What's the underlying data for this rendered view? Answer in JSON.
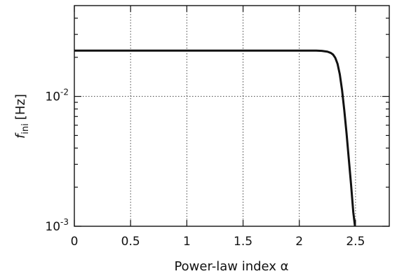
{
  "chart_data": {
    "type": "line",
    "title": "",
    "xlabel": "Power-law index α",
    "ylabel": "f_ini [Hz]",
    "ylabel_parts": {
      "symbol": "f",
      "subscript": "ini",
      "unit": "[Hz]"
    },
    "xlim": [
      0,
      2.8
    ],
    "ylim": [
      0.001,
      0.05
    ],
    "yscale": "log",
    "grid": true,
    "x_ticks": [
      0,
      0.5,
      1,
      1.5,
      2,
      2.5
    ],
    "x_tick_labels": [
      "0",
      "0.5",
      "1",
      "1.5",
      "2",
      "2.5"
    ],
    "y_major_ticks": [
      {
        "value": 0.001,
        "base": "10",
        "exp": "-3"
      },
      {
        "value": 0.01,
        "base": "10",
        "exp": "-2"
      }
    ],
    "series": [
      {
        "x": [
          0,
          0.5,
          1.0,
          1.5,
          2.0,
          2.1,
          2.15,
          2.2,
          2.25,
          2.28,
          2.3,
          2.32,
          2.34,
          2.36,
          2.38,
          2.4,
          2.42,
          2.44,
          2.46,
          2.48,
          2.495
        ],
        "y": [
          0.0225,
          0.0225,
          0.0225,
          0.0225,
          0.0225,
          0.0225,
          0.0225,
          0.0224,
          0.0221,
          0.0216,
          0.021,
          0.0198,
          0.0178,
          0.0148,
          0.0112,
          0.0078,
          0.0052,
          0.0033,
          0.0021,
          0.00128,
          0.001
        ]
      }
    ]
  }
}
